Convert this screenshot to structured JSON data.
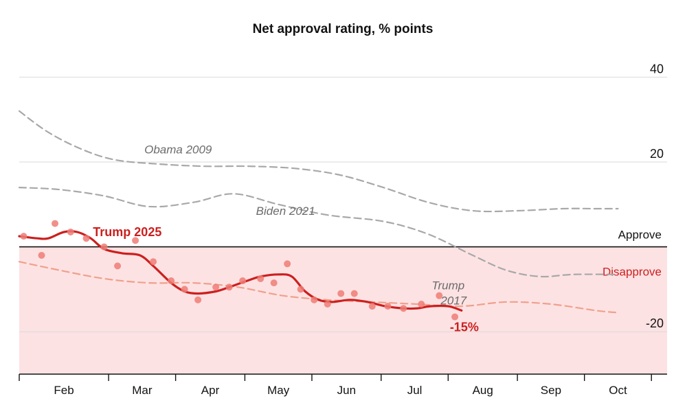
{
  "chart_data": {
    "type": "line",
    "title": "Net approval rating, % points",
    "xlabel": "",
    "ylabel": "",
    "ylim": [
      -30,
      42
    ],
    "yticks": [
      40,
      20,
      -20
    ],
    "grid": true,
    "zero_line": true,
    "months": [
      {
        "label": "Feb",
        "day": 1
      },
      {
        "label": "Mar",
        "day": 32
      },
      {
        "label": "Apr",
        "day": 62
      },
      {
        "label": "May",
        "day": 93
      },
      {
        "label": "Jun",
        "day": 123
      },
      {
        "label": "Jul",
        "day": 154
      },
      {
        "label": "Aug",
        "day": 184
      },
      {
        "label": "Sep",
        "day": 215
      },
      {
        "label": "Oct",
        "day": 245
      }
    ],
    "x_unit": "days",
    "x_range": [
      -8,
      282
    ],
    "regions": {
      "approve_label": "Approve",
      "disapprove_label": "Disapprove",
      "disapprove_color": "#fde2e3"
    },
    "series": [
      {
        "name": "Obama 2009",
        "style": "dashed",
        "color": "#a8a8a8",
        "x": [
          -8,
          5,
          20,
          35,
          55,
          75,
          95,
          115,
          135,
          155,
          175,
          195,
          215,
          235,
          250,
          260
        ],
        "y": [
          32,
          27,
          23,
          20.5,
          19.5,
          19,
          19,
          18.5,
          17,
          14,
          10.5,
          8.5,
          8.5,
          9,
          9,
          9
        ],
        "label_pos": {
          "x": 48,
          "y": 22
        }
      },
      {
        "name": "Biden 2021",
        "style": "dashed",
        "color": "#a8a8a8",
        "x": [
          -8,
          10,
          30,
          50,
          70,
          88,
          108,
          130,
          155,
          175,
          195,
          210,
          225,
          240,
          260
        ],
        "y": [
          14,
          13.5,
          12,
          9.5,
          10.5,
          12.5,
          10,
          7.5,
          6,
          3,
          -2,
          -5.5,
          -7,
          -6.5,
          -6.5
        ],
        "label_pos": {
          "x": 98,
          "y": 7.5
        }
      },
      {
        "name": "Trump 2017",
        "style": "dashed",
        "color": "#f0a08c",
        "x": [
          -8,
          10,
          30,
          50,
          70,
          90,
          110,
          130,
          150,
          170,
          190,
          210,
          230,
          250,
          260
        ],
        "y": [
          -3.5,
          -5.5,
          -7.5,
          -8.5,
          -8.5,
          -9.5,
          -11.5,
          -12.5,
          -13,
          -13.5,
          -14,
          -13,
          -13.5,
          -15,
          -15.5
        ],
        "label_pos": {
          "x": 184,
          "y": -10
        }
      },
      {
        "name": "Trump 2025",
        "style": "solid",
        "color": "#cc1f1f",
        "x": [
          -8,
          0,
          5,
          12,
          18,
          24,
          30,
          38,
          46,
          52,
          60,
          66,
          72,
          80,
          86,
          94,
          100,
          108,
          114,
          120,
          126,
          132,
          140,
          148,
          156,
          164,
          170,
          176,
          184,
          190
        ],
        "y": [
          2.5,
          2,
          2,
          3.5,
          3.5,
          2,
          -0.5,
          -1.5,
          -2,
          -4.5,
          -8.5,
          -10.5,
          -11,
          -10.5,
          -9.5,
          -8,
          -7,
          -6.5,
          -7,
          -10.5,
          -12.5,
          -13,
          -12.5,
          -13,
          -14,
          -14.5,
          -14.5,
          -14,
          -14,
          -15
        ],
        "label_pos": {
          "x": 25,
          "y": 2.5
        },
        "current_label": "-15%"
      }
    ],
    "points": {
      "name": "Trump 2025 polls",
      "color": "#ee7c76",
      "x": [
        -6,
        2,
        8,
        15,
        22,
        30,
        36,
        44,
        52,
        60,
        66,
        72,
        80,
        86,
        92,
        100,
        106,
        112,
        118,
        124,
        130,
        136,
        142,
        150,
        157,
        164,
        172,
        180,
        187
      ],
      "y": [
        2.5,
        -2,
        5.5,
        3.5,
        2,
        0,
        -4.5,
        1.5,
        -3.5,
        -8,
        -10,
        -12.5,
        -9.5,
        -9.5,
        -8,
        -7.5,
        -8.5,
        -4,
        -10,
        -12.5,
        -13.5,
        -11,
        -11,
        -14,
        -14,
        -14.5,
        -13.5,
        -11.5,
        -16.5
      ]
    }
  }
}
